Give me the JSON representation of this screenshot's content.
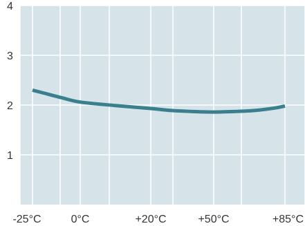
{
  "chart_data": {
    "type": "line",
    "title": "",
    "xlabel": "",
    "ylabel": "",
    "x_tick_labels": [
      "-25°C",
      "0°C",
      "+20°C",
      "+50°C",
      "+85°C"
    ],
    "x_tick_values": [
      -25,
      0,
      20,
      50,
      85
    ],
    "y_tick_labels": [
      "1",
      "2",
      "3",
      "4"
    ],
    "y_tick_values": [
      1,
      2,
      3,
      4
    ],
    "xlim": [
      -25,
      85
    ],
    "ylim": [
      0,
      4
    ],
    "grid": true,
    "legend": "none",
    "series": [
      {
        "x": [
          -25,
          -20,
          -10,
          0,
          10,
          20,
          30,
          40,
          50,
          60,
          70,
          80,
          85
        ],
        "y": [
          2.3,
          2.25,
          2.15,
          2.06,
          1.99,
          1.93,
          1.89,
          1.87,
          1.86,
          1.87,
          1.89,
          1.94,
          1.98
        ],
        "color": "#3a7f8e"
      }
    ],
    "colors": {
      "plot_background": "#d6e4ea",
      "grid": "#ffffff",
      "line": "#3a7f8e",
      "text": "#333333"
    }
  }
}
